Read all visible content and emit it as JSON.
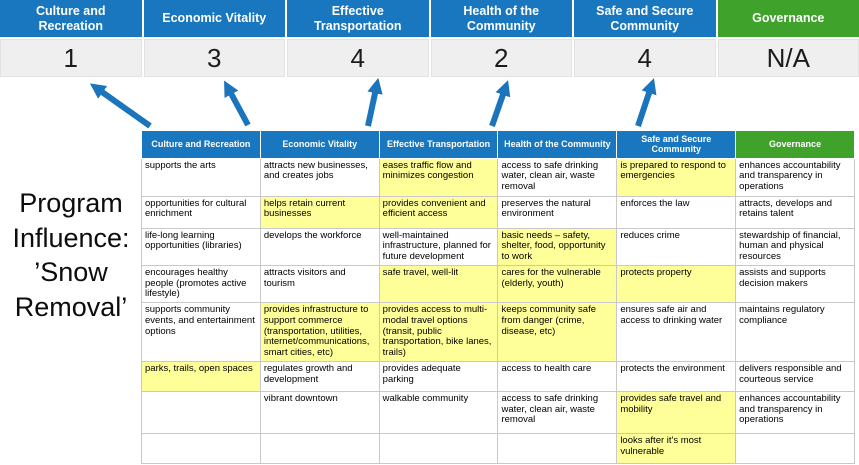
{
  "title": "Program Influence: ’Snow Removal’",
  "colors": {
    "header_blue": "#1877BE",
    "header_green": "#3FA32B",
    "highlight_yellow": "#FFFF99",
    "arrow_blue": "#1B75BC",
    "score_band_gray": "#EFEFEF"
  },
  "scorecard": {
    "columns": [
      {
        "label": "Culture and Recreation",
        "score": "1",
        "color": "blue"
      },
      {
        "label": "Economic Vitality",
        "score": "3",
        "color": "blue"
      },
      {
        "label": "Effective Transportation",
        "score": "4",
        "color": "blue"
      },
      {
        "label": "Health of the Community",
        "score": "2",
        "color": "blue"
      },
      {
        "label": "Safe and Secure Community",
        "score": "4",
        "color": "blue"
      },
      {
        "label": "Governance",
        "score": "N/A",
        "color": "green"
      }
    ]
  },
  "arrows": {
    "icon": "up-arrow-icon",
    "count": 5
  },
  "table": {
    "headers": [
      "Culture and Recreation",
      "Economic Vitality",
      "Effective Transportation",
      "Health of the Community",
      "Safe and Secure Community",
      "Governance"
    ],
    "rows": [
      [
        {
          "text": "supports the arts",
          "highlight": false
        },
        {
          "text": "attracts new businesses, and creates jobs",
          "highlight": false
        },
        {
          "text": "eases traffic flow and minimizes congestion",
          "highlight": true
        },
        {
          "text": "access to safe drinking water, clean air, waste removal",
          "highlight": false
        },
        {
          "text": "is prepared to respond to emergencies",
          "highlight": true
        },
        {
          "text": "enhances accountability and transparency in operations",
          "highlight": false
        }
      ],
      [
        {
          "text": "opportunities for cultural enrichment",
          "highlight": false
        },
        {
          "text": "helps retain current businesses",
          "highlight": true
        },
        {
          "text": "provides convenient and efficient access",
          "highlight": true
        },
        {
          "text": "preserves the natural environment",
          "highlight": false
        },
        {
          "text": "enforces the law",
          "highlight": false
        },
        {
          "text": "attracts, develops and retains talent",
          "highlight": false
        }
      ],
      [
        {
          "text": "life-long learning opportunities (libraries)",
          "highlight": false
        },
        {
          "text": "develops the workforce",
          "highlight": false
        },
        {
          "text": "well-maintained infrastructure, planned for future development",
          "highlight": false
        },
        {
          "text": "basic needs – safety, shelter, food, opportunity to work",
          "highlight": true
        },
        {
          "text": "reduces crime",
          "highlight": false
        },
        {
          "text": "stewardship of financial, human and physical resources",
          "highlight": false
        }
      ],
      [
        {
          "text": "encourages healthy people (promotes active lifestyle)",
          "highlight": false
        },
        {
          "text": "attracts visitors and tourism",
          "highlight": false
        },
        {
          "text": "safe travel, well-lit",
          "highlight": true
        },
        {
          "text": "cares for the vulnerable (elderly, youth)",
          "highlight": true
        },
        {
          "text": "protects property",
          "highlight": true
        },
        {
          "text": "assists and supports decision makers",
          "highlight": false
        }
      ],
      [
        {
          "text": "supports community events, and entertainment options",
          "highlight": false
        },
        {
          "text": "provides infrastructure to support commerce (transportation, utilities, internet/communications, smart cities, etc)",
          "highlight": true
        },
        {
          "text": "provides access to multi-modal travel options (transit, public transportation, bike lanes, trails)",
          "highlight": true
        },
        {
          "text": "keeps community safe from danger (crime, disease, etc)",
          "highlight": true
        },
        {
          "text": "ensures safe air and access to drinking water",
          "highlight": false
        },
        {
          "text": "maintains regulatory compliance",
          "highlight": false
        }
      ],
      [
        {
          "text": "parks, trails, open spaces",
          "highlight": true
        },
        {
          "text": "regulates growth and development",
          "highlight": false
        },
        {
          "text": "provides adequate parking",
          "highlight": false
        },
        {
          "text": "access to health care",
          "highlight": false
        },
        {
          "text": "protects the environment",
          "highlight": false
        },
        {
          "text": "delivers responsible and courteous service",
          "highlight": false
        }
      ],
      [
        {
          "text": "",
          "highlight": false
        },
        {
          "text": "vibrant downtown",
          "highlight": false
        },
        {
          "text": "walkable community",
          "highlight": false
        },
        {
          "text": "access to safe drinking water, clean air, waste removal",
          "highlight": false
        },
        {
          "text": "provides safe travel and mobility",
          "highlight": true
        },
        {
          "text": "enhances accountability and transparency in operations",
          "highlight": false
        }
      ],
      [
        {
          "text": "",
          "highlight": false
        },
        {
          "text": "",
          "highlight": false
        },
        {
          "text": "",
          "highlight": false
        },
        {
          "text": "",
          "highlight": false
        },
        {
          "text": "looks after it's most vulnerable",
          "highlight": true
        },
        {
          "text": "",
          "highlight": false
        }
      ]
    ]
  }
}
